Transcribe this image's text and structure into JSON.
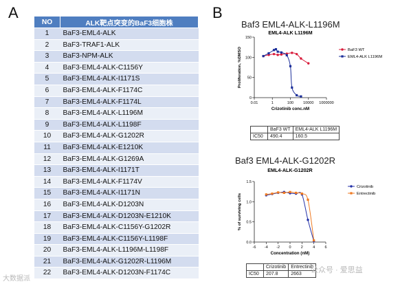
{
  "panels": {
    "a_label": "A",
    "b_label": "B"
  },
  "table": {
    "headers": [
      "NO",
      "ALK靶点突变的BaF3细胞株"
    ],
    "rows": [
      [
        "1",
        "BaF3-EML4-ALK"
      ],
      [
        "2",
        "BaF3-TRAF1-ALK"
      ],
      [
        "3",
        "BaF3-NPM-ALK"
      ],
      [
        "4",
        "BaF3-EML4-ALK-C1156Y"
      ],
      [
        "5",
        "BaF3-EML4-ALK-I1171S"
      ],
      [
        "6",
        "BaF3-EML4-ALK-F1174C"
      ],
      [
        "7",
        "BaF3-EML4-ALK-F1174L"
      ],
      [
        "8",
        "BaF3-EML4-ALK-L1196M"
      ],
      [
        "9",
        "BaF3-EML4-ALK-L1198F"
      ],
      [
        "10",
        "BaF3-EML4-ALK-G1202R"
      ],
      [
        "11",
        "BaF3-EML4-ALK-E1210K"
      ],
      [
        "12",
        "BaF3-EML4-ALK-G1269A"
      ],
      [
        "13",
        "BaF3-EML4-ALK-I1171T"
      ],
      [
        "14",
        "BaF3-EML4-ALK-F1174V"
      ],
      [
        "15",
        "BaF3-EML4-ALK-I1171N"
      ],
      [
        "16",
        "BaF3-EML4-ALK-D1203N"
      ],
      [
        "17",
        "BaF3-EML4-ALK-D1203N-E1210K"
      ],
      [
        "18",
        "BaF3-EML4-ALK-C1156Y-G1202R"
      ],
      [
        "19",
        "BaF3-EML4-ALK-C1156Y-L1198F"
      ],
      [
        "20",
        "BaF3-EML4-ALK-L1196M-L1198F"
      ],
      [
        "21",
        "BaF3-EML4-ALK-G1202R-L1196M"
      ],
      [
        "22",
        "BaF3-EML4-ALK-D1203N-F1174C"
      ]
    ]
  },
  "watermarks": {
    "left": "大数据派",
    "right": "公众号 · 爱思益"
  },
  "chart_data": [
    {
      "type": "line",
      "heading": "Baf3 EML4-ALK-L1196M",
      "title": "EML4-ALK L1196M",
      "xlabel": "Crizotinib conc.nM",
      "ylabel": "Proliferation, %DMSO",
      "xscale": "log",
      "xlim": [
        0.01,
        1000000
      ],
      "ylim": [
        0,
        150
      ],
      "xticks": [
        0.01,
        1,
        100,
        10000,
        1000000
      ],
      "xtick_labels": [
        "0.01",
        "1",
        "100",
        "10000",
        "1000000"
      ],
      "yticks": [
        0,
        50,
        100,
        150
      ],
      "legend_position": "right",
      "series": [
        {
          "name": "BaF3 WT",
          "color": "#d81b3a",
          "marker": "circle",
          "x": [
            0.1,
            0.4,
            1.5,
            4,
            10,
            40,
            150,
            500,
            1500,
            10000
          ],
          "y": [
            103,
            106,
            108,
            106,
            107,
            109,
            111,
            108,
            97,
            85
          ]
        },
        {
          "name": "EML4-ALK L1196M",
          "color": "#1c2f9a",
          "marker": "square",
          "x": [
            0.1,
            0.4,
            1.5,
            2.5,
            4,
            10,
            40,
            100,
            150,
            500,
            1500
          ],
          "y": [
            103,
            110,
            118,
            120,
            114,
            112,
            105,
            78,
            25,
            6,
            3
          ]
        }
      ],
      "ic50_table": {
        "columns": [
          "",
          "BaF3 WT",
          "EML4-ALK L1196M"
        ],
        "rows": [
          [
            "IC50",
            "490.4",
            "160.5"
          ]
        ]
      }
    },
    {
      "type": "line",
      "heading": "Baf3 EML4-ALK-G1202R",
      "title": "EML4-ALK-G1202R",
      "xlabel": "Concentration (nM)",
      "ylabel": "% of surviving cells",
      "xlim": [
        -6,
        6
      ],
      "ylim": [
        0,
        1.5
      ],
      "xticks": [
        -6,
        -4,
        -2,
        0,
        2,
        4,
        6
      ],
      "yticks": [
        0.0,
        0.5,
        1.0,
        1.5
      ],
      "ytick_labels": [
        "0.0",
        "0.5",
        "1.0",
        "1.5"
      ],
      "legend_position": "right",
      "series": [
        {
          "name": "Crizotinib",
          "color": "#2431a8",
          "marker": "circle",
          "x": [
            -4,
            -3,
            -2,
            -1,
            0,
            1,
            2,
            3,
            4
          ],
          "y": [
            1.16,
            1.19,
            1.22,
            1.24,
            1.21,
            1.2,
            1.18,
            0.55,
            0.02
          ]
        },
        {
          "name": "Entrectinib",
          "color": "#ef7a22",
          "marker": "square",
          "x": [
            -4,
            -3,
            -2,
            -1,
            0,
            1,
            2,
            3,
            4
          ],
          "y": [
            1.18,
            1.2,
            1.23,
            1.22,
            1.24,
            1.22,
            1.2,
            1.05,
            0.04
          ]
        }
      ],
      "ic50_table": {
        "columns": [
          "",
          "Crizotinib",
          "Entrectinib"
        ],
        "rows": [
          [
            "IC50",
            "207.8",
            "2663"
          ]
        ]
      }
    }
  ]
}
